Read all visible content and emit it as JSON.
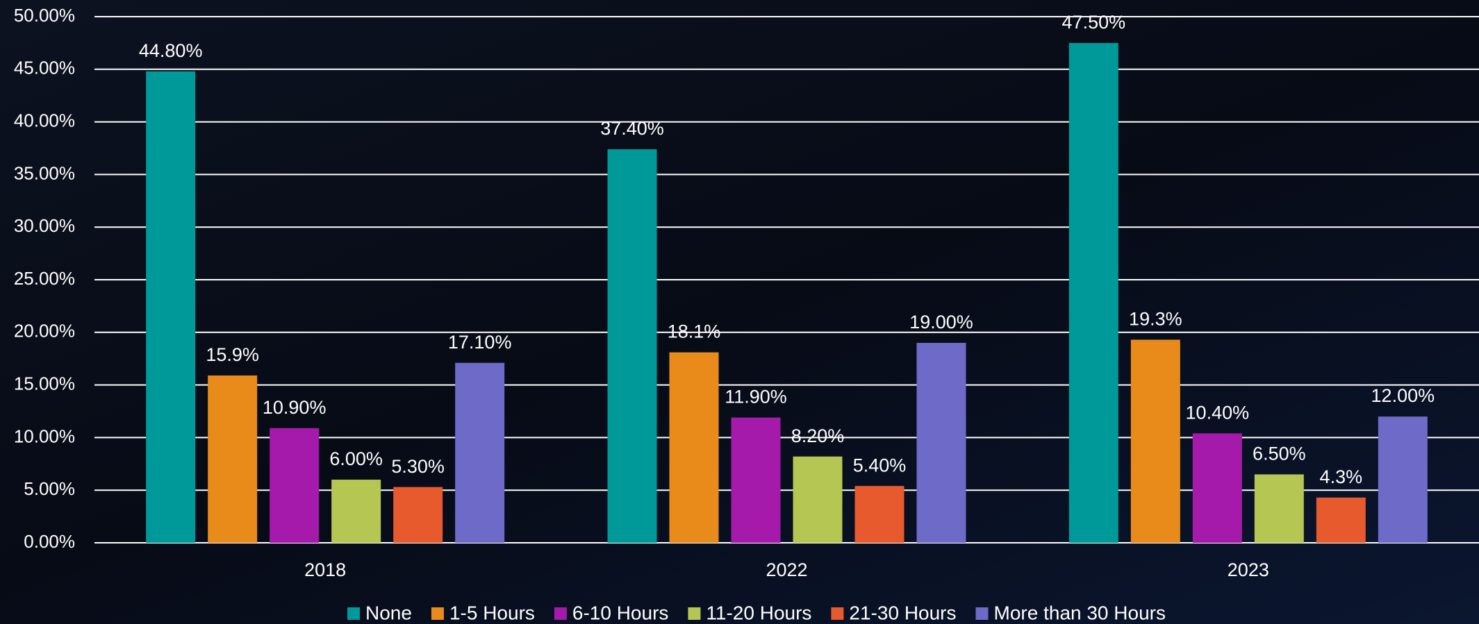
{
  "chart_data": {
    "type": "bar",
    "categories": [
      "2018",
      "2022",
      "2023"
    ],
    "series": [
      {
        "name": "None",
        "color": "#009999",
        "values": [
          44.8,
          37.4,
          47.5
        ],
        "value_labels": [
          "44.80%",
          "37.40%",
          "47.50%"
        ]
      },
      {
        "name": "1-5 Hours",
        "color": "#e88b1a",
        "values": [
          15.9,
          18.1,
          19.3
        ],
        "value_labels": [
          "15.9%",
          "18.1%",
          "19.3%"
        ]
      },
      {
        "name": "6-10 Hours",
        "color": "#a51aaa",
        "values": [
          10.9,
          11.9,
          10.4
        ],
        "value_labels": [
          "10.90%",
          "11.90%",
          "10.40%"
        ]
      },
      {
        "name": "11-20 Hours",
        "color": "#b5c652",
        "values": [
          6.0,
          8.2,
          6.5
        ],
        "value_labels": [
          "6.00%",
          "8.20%",
          "6.50%"
        ]
      },
      {
        "name": "21-30 Hours",
        "color": "#e65a2e",
        "values": [
          5.3,
          5.4,
          4.3
        ],
        "value_labels": [
          "5.30%",
          "5.40%",
          "4.3%"
        ]
      },
      {
        "name": "More than 30 Hours",
        "color": "#6e6ac8",
        "values": [
          17.1,
          19.0,
          12.0
        ],
        "value_labels": [
          "17.10%",
          "19.00%",
          "12.00%"
        ]
      }
    ],
    "ylim": [
      0,
      50
    ],
    "yticks": [
      {
        "value": 0,
        "label": "0.00%"
      },
      {
        "value": 5,
        "label": "5.00%"
      },
      {
        "value": 10,
        "label": "10.00%"
      },
      {
        "value": 15,
        "label": "15.00%"
      },
      {
        "value": 20,
        "label": "20.00%"
      },
      {
        "value": 25,
        "label": "25.00%"
      },
      {
        "value": 30,
        "label": "30.00%"
      },
      {
        "value": 35,
        "label": "35.00%"
      },
      {
        "value": 40,
        "label": "40.00%"
      },
      {
        "value": 45,
        "label": "45.00%"
      },
      {
        "value": 50,
        "label": "50.00%"
      }
    ],
    "grid": true,
    "legend": "bottom"
  }
}
